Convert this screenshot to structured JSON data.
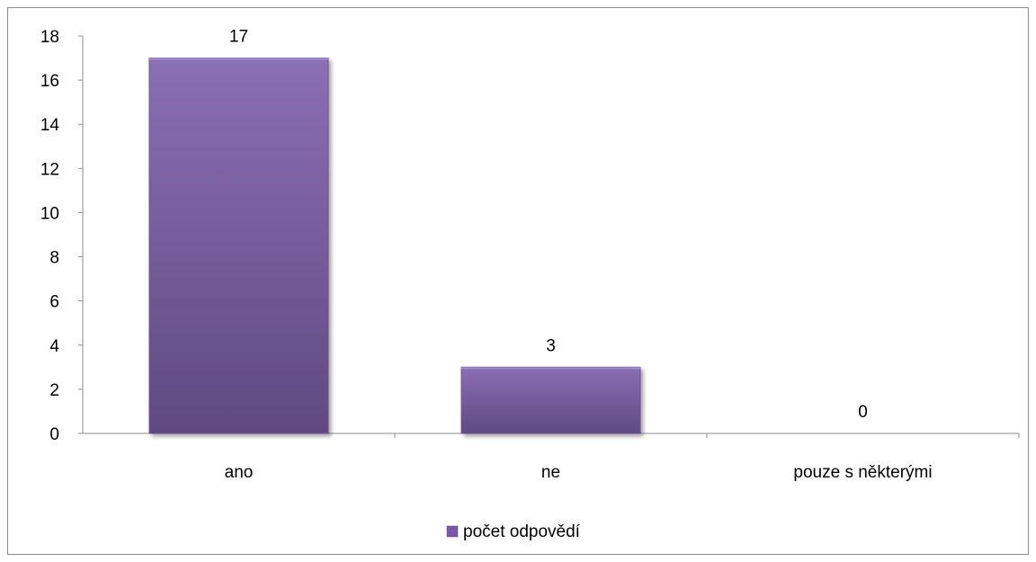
{
  "chart_data": {
    "type": "bar",
    "categories": [
      "ano",
      "ne",
      "pouze s některými"
    ],
    "series": [
      {
        "name": "počet odpovědí",
        "values": [
          17,
          3,
          0
        ]
      }
    ],
    "data_labels": [
      "17",
      "3",
      "0"
    ],
    "ylim": [
      0,
      18
    ],
    "y_ticks": [
      0,
      2,
      4,
      6,
      8,
      10,
      12,
      14,
      16,
      18
    ],
    "grid": false,
    "legend": "bottom",
    "colors": {
      "bar": "#8064a2",
      "bar_light": "#8a6fb5",
      "bar_dark": "#5f4a80",
      "legend_swatch": "#7a5aa8"
    }
  }
}
